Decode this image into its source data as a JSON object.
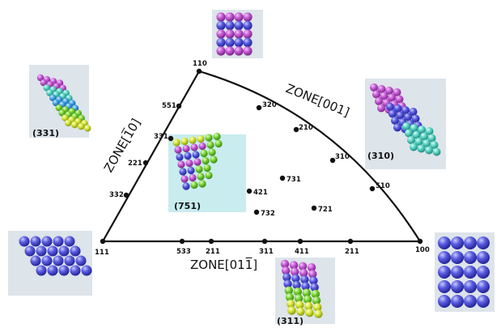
{
  "colors": {
    "edge": "#111111",
    "panel_bg": "#dde4ea",
    "panel_bg_teal": "#c9ecef",
    "blue": "#5b5de0",
    "magenta": "#c85ed8",
    "teal": "#5fd6c6",
    "green": "#7ed63a",
    "yellow": "#d8e83c",
    "sky": "#48a8e8"
  },
  "triangle": {
    "corners": [
      {
        "id": "c110",
        "label": "110"
      },
      {
        "id": "c111",
        "label": "111"
      },
      {
        "id": "c100",
        "label": "100"
      }
    ],
    "zones": {
      "left": "ZONE[1̅0]",
      "right": "ZONE[001]",
      "bottom": "ZONE[011̅]"
    },
    "left_edge_points": [
      "551",
      "331",
      "221",
      "332"
    ],
    "right_edge_points": [
      "320",
      "210",
      "310",
      "510"
    ],
    "bottom_edge_points": [
      "533",
      "211",
      "311",
      "411",
      "211"
    ],
    "interior_points": [
      "731",
      "421",
      "732",
      "721"
    ]
  },
  "panels": [
    {
      "id": "p110",
      "label": ""
    },
    {
      "id": "p331",
      "label": "(331)"
    },
    {
      "id": "p310",
      "label": "(310)"
    },
    {
      "id": "p751",
      "label": "(751)"
    },
    {
      "id": "p111",
      "label": ""
    },
    {
      "id": "p100",
      "label": ""
    },
    {
      "id": "p311",
      "label": "(311)"
    }
  ]
}
